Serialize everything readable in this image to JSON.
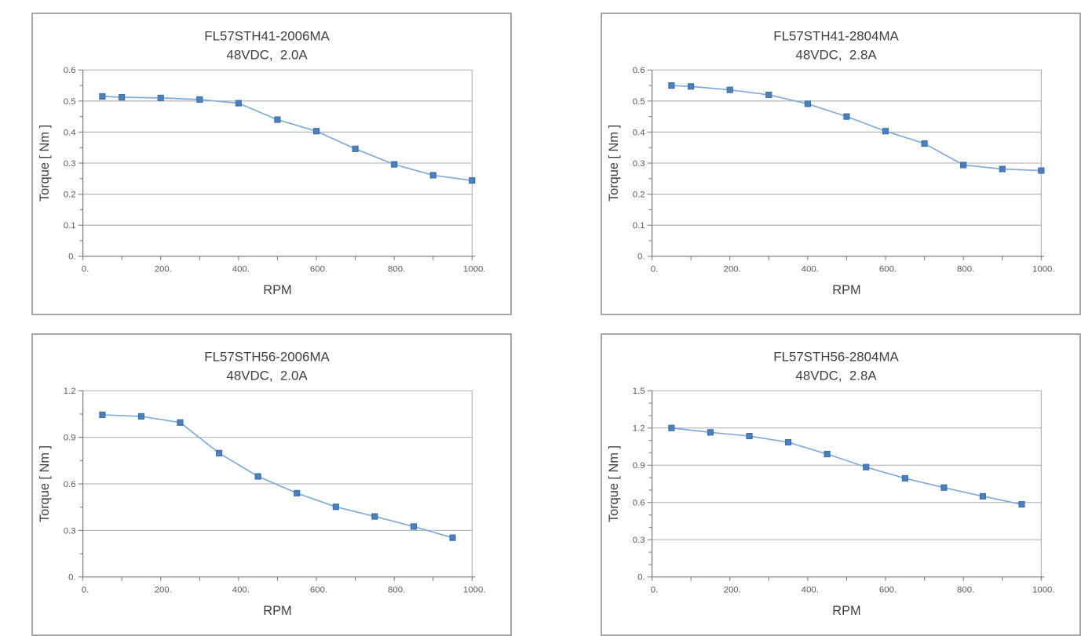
{
  "page": {
    "background": "#ffffff"
  },
  "colors": {
    "panel_border": "#a5a7ab",
    "grid": "#ababab",
    "axis": "#7f7f7f",
    "tick": "#7f7f7f",
    "title_text": "#3f3f3f",
    "tick_label_text": "#595959",
    "axis_label_text": "#3f3f3f",
    "series_line": "#7fa9db",
    "marker_fill": "#4a80bd",
    "marker_border": "#3a6ba5"
  },
  "chart_data": [
    {
      "type": "line",
      "title": "FL57STH41-2006MA",
      "subtitle": "48VDC,  2.0A",
      "xlabel": "RPM",
      "ylabel": "Torque [ Nm ]",
      "x": [
        50,
        100,
        200,
        300,
        400,
        500,
        600,
        700,
        800,
        900,
        1000
      ],
      "y": [
        0.515,
        0.512,
        0.51,
        0.505,
        0.493,
        0.44,
        0.403,
        0.346,
        0.296,
        0.261,
        0.244
      ],
      "xlim": [
        0,
        1000
      ],
      "ylim": [
        0,
        0.6
      ],
      "x_major": 200,
      "x_minor": 100,
      "y_major": 0.1,
      "y_minor": 0.05,
      "x_tick_labels": [
        "0.",
        "200.",
        "400.",
        "600.",
        "800.",
        "1000."
      ],
      "y_tick_labels": [
        "0.",
        "0.1",
        "0.2",
        "0.3",
        "0.4",
        "0.5",
        "0.6"
      ],
      "grid": "horizontal-only",
      "legend": "none"
    },
    {
      "type": "line",
      "title": "FL57STH41-2804MA",
      "subtitle": "48VDC,  2.8A",
      "xlabel": "RPM",
      "ylabel": "Torque [ Nm ]",
      "x": [
        50,
        100,
        200,
        300,
        400,
        500,
        600,
        700,
        800,
        900,
        1000
      ],
      "y": [
        0.55,
        0.547,
        0.536,
        0.52,
        0.491,
        0.45,
        0.403,
        0.363,
        0.294,
        0.281,
        0.276
      ],
      "xlim": [
        0,
        1000
      ],
      "ylim": [
        0,
        0.6
      ],
      "x_major": 200,
      "x_minor": 100,
      "y_major": 0.1,
      "y_minor": 0.05,
      "x_tick_labels": [
        "0.",
        "200.",
        "400.",
        "600.",
        "800.",
        "1000."
      ],
      "y_tick_labels": [
        "0.",
        "0.1",
        "0.2",
        "0.3",
        "0.4",
        "0.5",
        "0.6"
      ],
      "grid": "horizontal-only",
      "legend": "none"
    },
    {
      "type": "line",
      "title": "FL57STH56-2006MA",
      "subtitle": "48VDC,  2.0A",
      "xlabel": "RPM",
      "ylabel": "Torque [ Nm ]",
      "x": [
        50,
        150,
        250,
        350,
        450,
        550,
        650,
        750,
        850,
        950
      ],
      "y": [
        1.045,
        1.035,
        0.995,
        0.798,
        0.648,
        0.54,
        0.452,
        0.39,
        0.325,
        0.253
      ],
      "xlim": [
        0,
        1000
      ],
      "ylim": [
        0,
        1.2
      ],
      "x_major": 200,
      "x_minor": 100,
      "y_major": 0.3,
      "y_minor": 0.15,
      "x_tick_labels": [
        "0.",
        "200.",
        "400.",
        "600.",
        "800.",
        "1000."
      ],
      "y_tick_labels": [
        "0.",
        "0.3",
        "0.6",
        "0.9",
        "1.2"
      ],
      "grid": "horizontal-only",
      "legend": "none"
    },
    {
      "type": "line",
      "title": "FL57STH56-2804MA",
      "subtitle": "48VDC,  2.8A",
      "xlabel": "RPM",
      "ylabel": "Torque [ Nm ]",
      "x": [
        50,
        150,
        250,
        350,
        450,
        550,
        650,
        750,
        850,
        950
      ],
      "y": [
        1.2,
        1.165,
        1.135,
        1.085,
        0.99,
        0.885,
        0.795,
        0.72,
        0.65,
        0.585
      ],
      "xlim": [
        0,
        1000
      ],
      "ylim": [
        0,
        1.5
      ],
      "x_major": 200,
      "x_minor": 100,
      "y_major": 0.3,
      "y_minor": 0.1,
      "x_tick_labels": [
        "0.",
        "200.",
        "400.",
        "600.",
        "800.",
        "1000."
      ],
      "y_tick_labels": [
        "0.",
        "0.3",
        "0.6",
        "0.9",
        "1.2",
        "1.5"
      ],
      "grid": "horizontal-only",
      "legend": "none"
    }
  ]
}
